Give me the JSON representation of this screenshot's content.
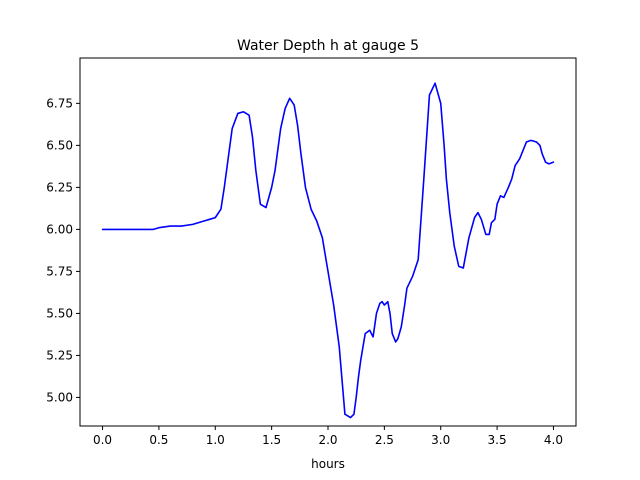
{
  "chart_data": {
    "type": "line",
    "title": "Water Depth h at gauge 5",
    "xlabel": "hours",
    "ylabel": "",
    "xlim": [
      -0.2,
      4.2
    ],
    "ylim": [
      4.83,
      7.02
    ],
    "grid": false,
    "xticks": [
      0.0,
      0.5,
      1.0,
      1.5,
      2.0,
      2.5,
      3.0,
      3.5,
      4.0
    ],
    "xtick_labels": [
      "0.0",
      "0.5",
      "1.0",
      "1.5",
      "2.0",
      "2.5",
      "3.0",
      "3.5",
      "4.0"
    ],
    "yticks": [
      5.0,
      5.25,
      5.5,
      5.75,
      6.0,
      6.25,
      6.5,
      6.75
    ],
    "ytick_labels": [
      "5.00",
      "5.25",
      "5.50",
      "5.75",
      "6.00",
      "6.25",
      "6.50",
      "6.75"
    ],
    "series": [
      {
        "color": "#0000ff",
        "x": [
          0.0,
          0.2,
          0.4,
          0.45,
          0.5,
          0.6,
          0.7,
          0.8,
          0.9,
          0.95,
          1.0,
          1.05,
          1.08,
          1.12,
          1.15,
          1.2,
          1.25,
          1.3,
          1.33,
          1.36,
          1.4,
          1.45,
          1.5,
          1.53,
          1.55,
          1.58,
          1.62,
          1.66,
          1.7,
          1.73,
          1.76,
          1.8,
          1.85,
          1.9,
          1.95,
          2.0,
          2.05,
          2.1,
          2.15,
          2.2,
          2.23,
          2.25,
          2.27,
          2.29,
          2.31,
          2.33,
          2.37,
          2.4,
          2.43,
          2.46,
          2.48,
          2.5,
          2.53,
          2.55,
          2.57,
          2.6,
          2.62,
          2.65,
          2.68,
          2.7,
          2.75,
          2.8,
          2.85,
          2.9,
          2.95,
          3.0,
          3.03,
          3.05,
          3.08,
          3.12,
          3.16,
          3.2,
          3.25,
          3.3,
          3.33,
          3.36,
          3.4,
          3.43,
          3.45,
          3.48,
          3.5,
          3.53,
          3.56,
          3.6,
          3.63,
          3.66,
          3.7,
          3.73,
          3.76,
          3.8,
          3.85,
          3.88,
          3.9,
          3.93,
          3.96,
          4.0
        ],
        "y": [
          6.0,
          6.0,
          6.0,
          6.0,
          6.01,
          6.02,
          6.02,
          6.03,
          6.05,
          6.06,
          6.07,
          6.12,
          6.25,
          6.45,
          6.6,
          6.69,
          6.7,
          6.68,
          6.55,
          6.35,
          6.15,
          6.13,
          6.25,
          6.35,
          6.45,
          6.6,
          6.72,
          6.78,
          6.74,
          6.62,
          6.45,
          6.25,
          6.12,
          6.05,
          5.95,
          5.75,
          5.55,
          5.3,
          4.9,
          4.88,
          4.9,
          5.0,
          5.12,
          5.22,
          5.3,
          5.38,
          5.4,
          5.36,
          5.5,
          5.56,
          5.57,
          5.55,
          5.57,
          5.5,
          5.38,
          5.33,
          5.35,
          5.42,
          5.55,
          5.65,
          5.72,
          5.82,
          6.3,
          6.8,
          6.87,
          6.75,
          6.5,
          6.3,
          6.1,
          5.9,
          5.78,
          5.77,
          5.95,
          6.07,
          6.1,
          6.06,
          5.97,
          5.97,
          6.04,
          6.06,
          6.15,
          6.2,
          6.19,
          6.25,
          6.3,
          6.38,
          6.42,
          6.47,
          6.52,
          6.53,
          6.52,
          6.5,
          6.45,
          6.4,
          6.39,
          6.4
        ]
      }
    ]
  }
}
